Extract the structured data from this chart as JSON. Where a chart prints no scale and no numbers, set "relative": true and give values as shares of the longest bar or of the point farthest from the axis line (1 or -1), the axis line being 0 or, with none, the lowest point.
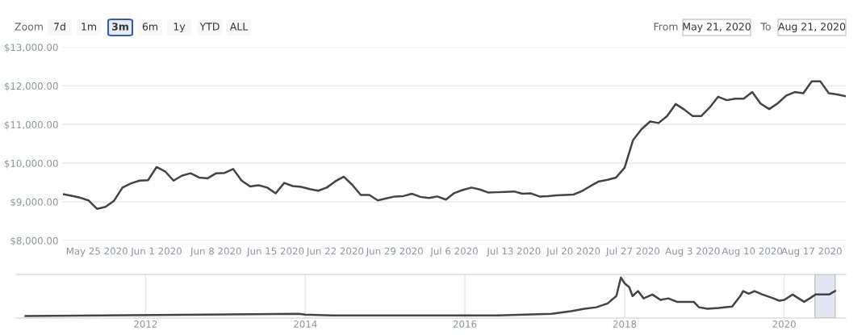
{
  "chart_data": [
    {
      "type": "line",
      "annotations": [
        "Zoom",
        "7d",
        "1m",
        "3m",
        "6m",
        "1y",
        "YTD",
        "ALL",
        "From",
        "May 21, 2020",
        "To",
        "Aug 21, 2020"
      ],
      "xlim": [
        "2020-05-21",
        "2020-08-21"
      ],
      "xticks": [
        {
          "value": "2020-05-25",
          "label": "May 25 2020"
        },
        {
          "value": "2020-06-01",
          "label": "Jun 1 2020"
        },
        {
          "value": "2020-06-08",
          "label": "Jun 8 2020"
        },
        {
          "value": "2020-06-15",
          "label": "Jun 15 2020"
        },
        {
          "value": "2020-06-22",
          "label": "Jun 22 2020"
        },
        {
          "value": "2020-06-29",
          "label": "Jun 29 2020"
        },
        {
          "value": "2020-07-06",
          "label": "Jul 6 2020"
        },
        {
          "value": "2020-07-13",
          "label": "Jul 13 2020"
        },
        {
          "value": "2020-07-20",
          "label": "Jul 20 2020"
        },
        {
          "value": "2020-07-27",
          "label": "Jul 27 2020"
        },
        {
          "value": "2020-08-03",
          "label": "Aug 3 2020"
        },
        {
          "value": "2020-08-10",
          "label": "Aug 10 2020"
        },
        {
          "value": "2020-08-17",
          "label": "Aug 17 2020"
        }
      ],
      "ylim": [
        8000,
        13000
      ],
      "yticks": [
        {
          "value": 8000,
          "label": "$8,000.00"
        },
        {
          "value": 9000,
          "label": "$9,000.00"
        },
        {
          "value": 10000,
          "label": "$10,000.00"
        },
        {
          "value": 11000,
          "label": "$11,000.00"
        },
        {
          "value": 12000,
          "label": "$12,000.00"
        },
        {
          "value": 13000,
          "label": "$13,000.00"
        }
      ],
      "grid": "y",
      "marker": "none",
      "line_style": "solid",
      "series": [
        {
          "color": "#434348",
          "x": [
            "2020-05-21",
            "2020-05-22",
            "2020-05-23",
            "2020-05-24",
            "2020-05-25",
            "2020-05-26",
            "2020-05-27",
            "2020-05-28",
            "2020-05-29",
            "2020-05-30",
            "2020-05-31",
            "2020-06-01",
            "2020-06-02",
            "2020-06-03",
            "2020-06-04",
            "2020-06-05",
            "2020-06-06",
            "2020-06-07",
            "2020-06-08",
            "2020-06-09",
            "2020-06-10",
            "2020-06-11",
            "2020-06-12",
            "2020-06-13",
            "2020-06-14",
            "2020-06-15",
            "2020-06-16",
            "2020-06-17",
            "2020-06-18",
            "2020-06-19",
            "2020-06-20",
            "2020-06-21",
            "2020-06-22",
            "2020-06-23",
            "2020-06-24",
            "2020-06-25",
            "2020-06-26",
            "2020-06-27",
            "2020-06-28",
            "2020-06-29",
            "2020-06-30",
            "2020-07-01",
            "2020-07-02",
            "2020-07-03",
            "2020-07-04",
            "2020-07-05",
            "2020-07-06",
            "2020-07-07",
            "2020-07-08",
            "2020-07-09",
            "2020-07-10",
            "2020-07-11",
            "2020-07-12",
            "2020-07-13",
            "2020-07-14",
            "2020-07-15",
            "2020-07-16",
            "2020-07-17",
            "2020-07-18",
            "2020-07-19",
            "2020-07-20",
            "2020-07-21",
            "2020-07-22",
            "2020-07-23",
            "2020-07-24",
            "2020-07-25",
            "2020-07-26",
            "2020-07-27",
            "2020-07-28",
            "2020-07-29",
            "2020-07-30",
            "2020-07-31",
            "2020-08-01",
            "2020-08-02",
            "2020-08-03",
            "2020-08-04",
            "2020-08-05",
            "2020-08-06",
            "2020-08-07",
            "2020-08-08",
            "2020-08-09",
            "2020-08-10",
            "2020-08-11",
            "2020-08-12",
            "2020-08-13",
            "2020-08-14",
            "2020-08-15",
            "2020-08-16",
            "2020-08-17",
            "2020-08-18",
            "2020-08-19",
            "2020-08-20",
            "2020-08-21"
          ],
          "values": [
            9200,
            9160,
            9110,
            9040,
            8820,
            8870,
            9030,
            9370,
            9480,
            9550,
            9560,
            9900,
            9790,
            9550,
            9680,
            9740,
            9630,
            9610,
            9740,
            9750,
            9850,
            9550,
            9400,
            9430,
            9370,
            9220,
            9490,
            9410,
            9390,
            9330,
            9290,
            9370,
            9530,
            9650,
            9440,
            9180,
            9180,
            9040,
            9090,
            9140,
            9150,
            9210,
            9130,
            9100,
            9140,
            9060,
            9230,
            9310,
            9370,
            9320,
            9240,
            9250,
            9260,
            9270,
            9210,
            9220,
            9140,
            9150,
            9170,
            9180,
            9190,
            9280,
            9410,
            9530,
            9570,
            9630,
            9880,
            10600,
            10880,
            11080,
            11040,
            11220,
            11530,
            11390,
            11220,
            11220,
            11440,
            11720,
            11630,
            11670,
            11670,
            11840,
            11540,
            11400,
            11550,
            11750,
            11840,
            11810,
            12120,
            12120,
            11810,
            11780,
            11730
          ]
        }
      ]
    },
    {
      "type": "line",
      "relative": true,
      "tick_labels": "x",
      "grid": "x",
      "marker": "none",
      "line_style": "solid",
      "xlim": [
        "2010-05-19",
        "2020-10-09"
      ],
      "bands": [
        {
          "axis": "x",
          "from": "2020-05-21",
          "to": "2020-08-21",
          "color": "#ccd6eb"
        }
      ],
      "xticks": [
        {
          "value": "2012",
          "label": "2012"
        },
        {
          "value": "2014",
          "label": "2014"
        },
        {
          "value": "2016",
          "label": "2016"
        },
        {
          "value": "2018",
          "label": "2018"
        },
        {
          "value": "2020",
          "label": "2020"
        }
      ],
      "series": [
        {
          "color": "#434348",
          "x": [
            "2010-07",
            "2013-12",
            "2014-01",
            "2014-05",
            "2016-06",
            "2017-02",
            "2017-05",
            "2017-07",
            "2017-08-25",
            "2017-10-15",
            "2017-11-24",
            "2017-12-15",
            "2018-01-01",
            "2018-01-22",
            "2018-02-06",
            "2018-03-03",
            "2018-03-29",
            "2018-05-08",
            "2018-06-14",
            "2018-07-20",
            "2018-08-28",
            "2018-11-13",
            "2018-12-07",
            "2019-01-15",
            "2019-03-07",
            "2019-05-08",
            "2019-06-14",
            "2019-06-27",
            "2019-07-23",
            "2019-08-18",
            "2019-09-24",
            "2019-11-13",
            "2019-12-09",
            "2020-01-01",
            "2020-02-09",
            "2020-03-07",
            "2020-04-01",
            "2020-04-27",
            "2020-05-23",
            "2020-07-24",
            "2020-08-21"
          ],
          "values": [
            0,
            0.06,
            0.04,
            0.02,
            0.02,
            0.06,
            0.13,
            0.19,
            0.23,
            0.33,
            0.52,
            1,
            0.85,
            0.75,
            0.52,
            0.65,
            0.46,
            0.56,
            0.42,
            0.46,
            0.37,
            0.37,
            0.23,
            0.19,
            0.21,
            0.25,
            0.52,
            0.65,
            0.58,
            0.65,
            0.56,
            0.46,
            0.4,
            0.42,
            0.56,
            0.46,
            0.37,
            0.46,
            0.56,
            0.56,
            0.65
          ]
        }
      ]
    }
  ]
}
